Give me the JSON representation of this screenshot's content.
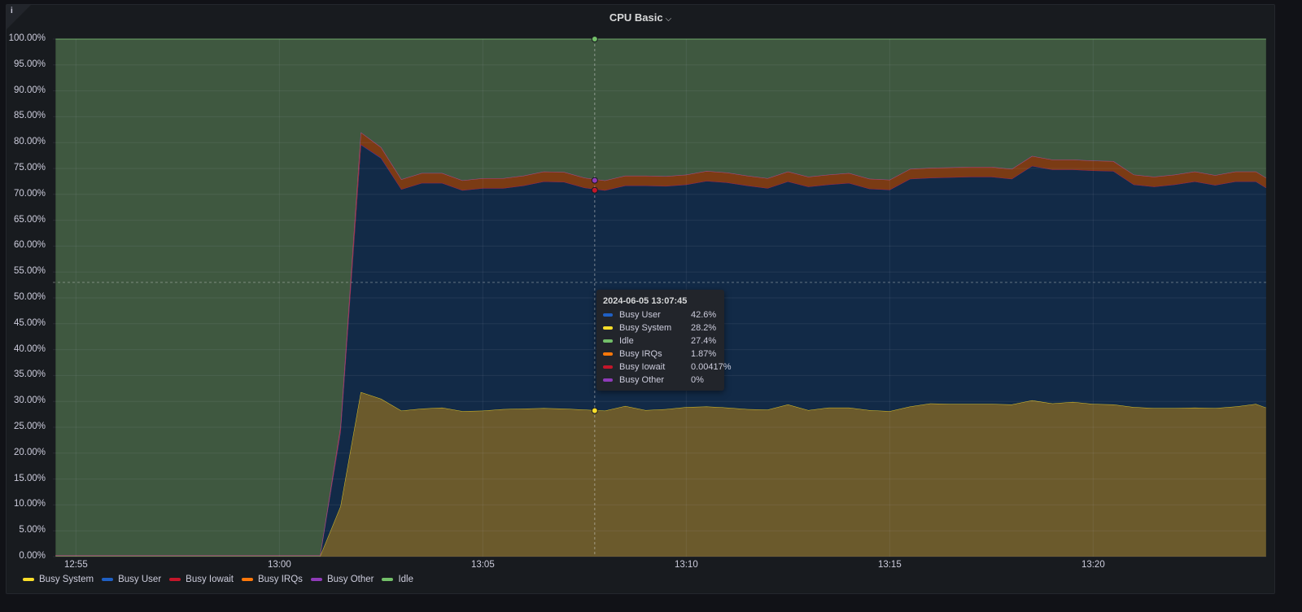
{
  "panel": {
    "title": "CPU Basic",
    "info_icon": "info-icon",
    "menu_icon": "chevron-down-icon"
  },
  "colors": {
    "Busy System": "#fade2a",
    "Busy User": "#1f60c4",
    "Busy Iowait": "#c4162a",
    "Busy IRQs": "#ff780a",
    "Busy Other": "#8f3bb8",
    "Idle": "#73bf69"
  },
  "chart_data": {
    "type": "area",
    "stacked": true,
    "grid": true,
    "legend_placement": "bottom-left",
    "ylim": [
      0,
      100
    ],
    "yticks": [
      "0.00%",
      "5.00%",
      "10.00%",
      "15.00%",
      "20.00%",
      "25.00%",
      "30.00%",
      "35.00%",
      "40.00%",
      "45.00%",
      "50.00%",
      "55.00%",
      "60.00%",
      "65.00%",
      "70.00%",
      "75.00%",
      "80.00%",
      "85.00%",
      "90.00%",
      "95.00%",
      "100.00%"
    ],
    "xticks": [
      "12:55",
      "13:00",
      "13:05",
      "13:10",
      "13:15",
      "13:20"
    ],
    "x": [
      "12:54:30",
      "12:55:00",
      "12:55:30",
      "12:56:00",
      "12:56:30",
      "12:57:00",
      "12:57:30",
      "12:58:00",
      "12:58:30",
      "12:59:00",
      "12:59:30",
      "13:00:00",
      "13:00:30",
      "13:01:00",
      "13:01:30",
      "13:02:00",
      "13:02:30",
      "13:03:00",
      "13:03:30",
      "13:04:00",
      "13:04:30",
      "13:05:00",
      "13:05:30",
      "13:06:00",
      "13:06:30",
      "13:07:00",
      "13:07:30",
      "13:08:00",
      "13:08:30",
      "13:09:00",
      "13:09:30",
      "13:10:00",
      "13:10:30",
      "13:11:00",
      "13:11:30",
      "13:12:00",
      "13:12:30",
      "13:13:00",
      "13:13:30",
      "13:14:00",
      "13:14:30",
      "13:15:00",
      "13:15:30",
      "13:16:00",
      "13:16:30",
      "13:17:00",
      "13:17:30",
      "13:18:00",
      "13:18:30",
      "13:19:00",
      "13:19:30",
      "13:20:00",
      "13:20:30",
      "13:21:00",
      "13:21:30",
      "13:22:00",
      "13:22:30",
      "13:23:00",
      "13:23:30",
      "13:24:00",
      "13:24:15"
    ],
    "series": [
      {
        "name": "Busy System",
        "values": [
          0.1,
          0.1,
          0.1,
          0.1,
          0.1,
          0.1,
          0.1,
          0.1,
          0.1,
          0.1,
          0.1,
          0.1,
          0.1,
          0.1,
          9.7,
          31.8,
          30.5,
          28.2,
          28.6,
          28.8,
          28.1,
          28.2,
          28.5,
          28.6,
          28.7,
          28.6,
          28.4,
          28.2,
          29.1,
          28.3,
          28.5,
          28.9,
          29.0,
          28.8,
          28.5,
          28.4,
          29.4,
          28.3,
          28.8,
          28.8,
          28.3,
          28.1,
          29.0,
          29.6,
          29.5,
          29.5,
          29.5,
          29.4,
          30.2,
          29.6,
          29.9,
          29.5,
          29.4,
          28.9,
          28.7,
          28.7,
          28.8,
          28.7,
          29.0,
          29.5,
          28.8
        ]
      },
      {
        "name": "Busy User",
        "values": [
          0.1,
          0.1,
          0.1,
          0.1,
          0.1,
          0.1,
          0.1,
          0.1,
          0.1,
          0.1,
          0.1,
          0.1,
          0.1,
          0.1,
          14.3,
          47.8,
          46.5,
          42.8,
          43.6,
          43.4,
          42.7,
          43.0,
          42.7,
          43.1,
          43.8,
          43.8,
          42.9,
          42.6,
          42.6,
          43.4,
          43.1,
          43.0,
          43.6,
          43.5,
          43.2,
          42.8,
          43.1,
          43.2,
          43.1,
          43.4,
          42.8,
          42.8,
          44.0,
          43.6,
          43.8,
          43.9,
          43.9,
          43.6,
          45.3,
          45.2,
          44.9,
          45.1,
          45.1,
          43.0,
          42.8,
          43.2,
          43.7,
          43.1,
          43.5,
          43.0,
          42.5
        ]
      },
      {
        "name": "Busy Iowait",
        "values": [
          0.05,
          0.05,
          0.05,
          0.05,
          0.05,
          0.05,
          0.05,
          0.05,
          0.05,
          0.05,
          0.05,
          0.05,
          0.05,
          0.05,
          0.3,
          0.1,
          0.1,
          0.01,
          0.01,
          0.01,
          0.01,
          0.01,
          0.01,
          0.01,
          0.01,
          0.01,
          0.01,
          0.00417,
          0.01,
          0.01,
          0.01,
          0.01,
          0.01,
          0.01,
          0.01,
          0.01,
          0.01,
          0.01,
          0.01,
          0.01,
          0.01,
          0.01,
          0.01,
          0.01,
          0.01,
          0.01,
          0.01,
          0.01,
          0.01,
          0.01,
          0.01,
          0.01,
          0.01,
          0.01,
          0.01,
          0.01,
          0.01,
          0.01,
          0.01,
          0.01,
          0.01
        ]
      },
      {
        "name": "Busy IRQs",
        "values": [
          0,
          0,
          0,
          0,
          0,
          0,
          0,
          0,
          0,
          0,
          0,
          0,
          0,
          0,
          0.8,
          2.3,
          2.0,
          1.9,
          1.9,
          1.9,
          1.9,
          1.9,
          1.9,
          1.9,
          1.9,
          1.9,
          1.9,
          1.87,
          1.9,
          1.9,
          1.9,
          1.9,
          1.9,
          1.9,
          1.9,
          1.9,
          1.9,
          1.9,
          1.9,
          1.9,
          1.9,
          1.9,
          1.9,
          1.9,
          1.9,
          1.9,
          1.9,
          1.9,
          1.9,
          1.9,
          1.9,
          1.9,
          1.9,
          1.9,
          1.9,
          1.9,
          1.9,
          1.9,
          1.9,
          1.9,
          1.9
        ]
      },
      {
        "name": "Busy Other",
        "values": [
          0,
          0,
          0,
          0,
          0,
          0,
          0,
          0,
          0,
          0,
          0,
          0,
          0,
          0,
          0,
          0,
          0,
          0,
          0,
          0,
          0,
          0,
          0,
          0,
          0,
          0,
          0,
          0,
          0,
          0,
          0,
          0,
          0,
          0,
          0,
          0,
          0,
          0,
          0,
          0,
          0,
          0,
          0,
          0,
          0,
          0,
          0,
          0,
          0,
          0,
          0,
          0,
          0,
          0,
          0,
          0,
          0,
          0,
          0,
          0,
          0
        ]
      },
      {
        "name": "Idle",
        "values": "remainder to 100%"
      }
    ],
    "legend": [
      "Busy System",
      "Busy User",
      "Busy Iowait",
      "Busy IRQs",
      "Busy Other",
      "Idle"
    ],
    "tooltip": {
      "time": "2024-06-05 13:07:45",
      "rows": [
        {
          "name": "Busy User",
          "value": "42.6%"
        },
        {
          "name": "Busy System",
          "value": "28.2%"
        },
        {
          "name": "Idle",
          "value": "27.4%"
        },
        {
          "name": "Busy IRQs",
          "value": "1.87%"
        },
        {
          "name": "Busy Iowait",
          "value": "0.00417%"
        },
        {
          "name": "Busy Other",
          "value": "0%"
        }
      ]
    }
  }
}
